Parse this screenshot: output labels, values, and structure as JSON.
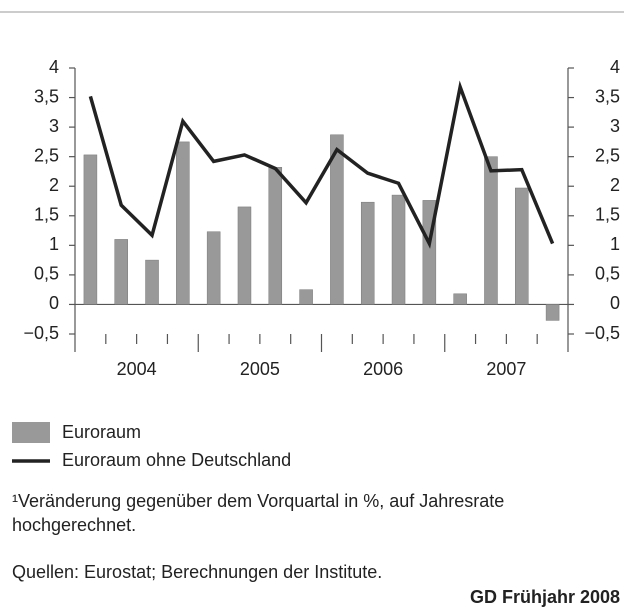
{
  "chart_data": {
    "type": "bar",
    "year_labels": [
      "2004",
      "2005",
      "2006",
      "2007"
    ],
    "series": [
      {
        "name": "Euroraum",
        "type": "bar",
        "color": "#999999",
        "values": [
          2.53,
          1.1,
          0.75,
          2.75,
          1.23,
          1.65,
          2.32,
          0.25,
          2.87,
          1.73,
          1.85,
          1.76,
          0.18,
          2.5,
          1.97,
          -0.27
        ]
      },
      {
        "name": "Euroraum ohne Deutschland",
        "type": "line",
        "color": "#222222",
        "values": [
          3.52,
          1.68,
          1.17,
          3.1,
          2.42,
          2.53,
          2.3,
          1.72,
          2.62,
          2.22,
          2.05,
          1.03,
          3.68,
          2.26,
          2.28,
          1.03
        ]
      }
    ],
    "ylim": [
      -0.5,
      4
    ],
    "yticks": [
      {
        "value": -0.5,
        "label": "−0,5"
      },
      0,
      {
        "value": 0.5,
        "label": "0,5"
      },
      1,
      {
        "value": 1.5,
        "label": "1,5"
      },
      2,
      {
        "value": 2.5,
        "label": "2,5"
      },
      3,
      {
        "value": 3.5,
        "label": "3,5"
      },
      4
    ],
    "y2lim": [
      -0.5,
      4
    ],
    "y2ticks": [
      {
        "value": -0.5,
        "label": "−0,5"
      },
      0,
      {
        "value": 0.5,
        "label": "0,5"
      },
      1,
      {
        "value": 1.5,
        "label": "1,5"
      },
      2,
      {
        "value": 2.5,
        "label": "2,5"
      },
      3,
      {
        "value": 3.5,
        "label": "3,5"
      },
      4
    ],
    "notes": [
      "¹Veränderung gegenüber dem Vorquartal in %, auf Jahresrate",
      "hochgerechnet."
    ],
    "source": "Quellen: Eurostat; Berechnungen der Institute.",
    "credit": "GD Frühjahr 2008"
  }
}
